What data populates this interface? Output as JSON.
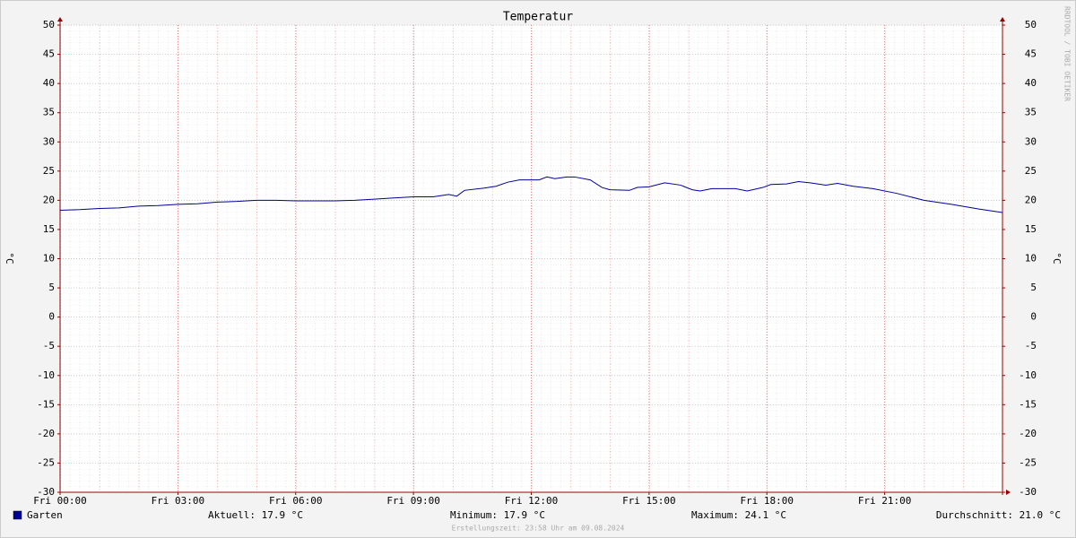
{
  "chart_data": {
    "type": "line",
    "title": "Temperatur",
    "y_label": "°C",
    "y2_label": "°C",
    "watermark": "RRDTOOL / TOBI OETIKER",
    "xlim": [
      0,
      24
    ],
    "xticks": [
      {
        "value": 0,
        "label": "Fri 00:00"
      },
      {
        "value": 3,
        "label": "Fri 03:00"
      },
      {
        "value": 6,
        "label": "Fri 06:00"
      },
      {
        "value": 9,
        "label": "Fri 09:00"
      },
      {
        "value": 12,
        "label": "Fri 12:00"
      },
      {
        "value": 15,
        "label": "Fri 15:00"
      },
      {
        "value": 18,
        "label": "Fri 18:00"
      },
      {
        "value": 21,
        "label": "Fri 21:00"
      }
    ],
    "ylim": [
      -30,
      50
    ],
    "yticks": [
      -30,
      -25,
      -20,
      -15,
      -10,
      -5,
      0,
      5,
      10,
      15,
      20,
      25,
      30,
      35,
      40,
      45,
      50
    ],
    "y2lim": [
      -30,
      50
    ],
    "y2ticks": [
      -30,
      -25,
      -20,
      -15,
      -10,
      -5,
      0,
      5,
      10,
      15,
      20,
      25,
      30,
      35,
      40,
      45,
      50
    ],
    "grid": true,
    "x": [
      0,
      0.5,
      1,
      1.5,
      2,
      2.5,
      3,
      3.5,
      4,
      4.5,
      5,
      5.5,
      6,
      6.5,
      7,
      7.5,
      8,
      8.5,
      9,
      9.5,
      9.9,
      10.1,
      10.3,
      10.8,
      11.1,
      11.4,
      11.7,
      12.2,
      12.4,
      12.6,
      12.9,
      13.1,
      13.5,
      13.8,
      14,
      14.5,
      14.7,
      15,
      15.4,
      15.8,
      16.1,
      16.3,
      16.6,
      17.2,
      17.5,
      17.9,
      18.1,
      18.5,
      18.8,
      19.1,
      19.5,
      19.8,
      20.2,
      20.7,
      21.3,
      22,
      22.7,
      23.4,
      24
    ],
    "series": [
      {
        "name": "Garten",
        "color": "#000099",
        "values": [
          18.3,
          18.4,
          18.6,
          18.7,
          19.0,
          19.1,
          19.3,
          19.4,
          19.7,
          19.8,
          20.0,
          20.0,
          19.9,
          19.9,
          19.9,
          20.0,
          20.2,
          20.4,
          20.6,
          20.6,
          21.0,
          20.7,
          21.7,
          22.1,
          22.4,
          23.1,
          23.5,
          23.5,
          24.0,
          23.7,
          24.0,
          24.0,
          23.5,
          22.2,
          21.8,
          21.7,
          22.2,
          22.3,
          23.0,
          22.6,
          21.8,
          21.6,
          22.0,
          22.0,
          21.6,
          22.2,
          22.7,
          22.8,
          23.2,
          23.0,
          22.6,
          22.9,
          22.4,
          22.0,
          21.2,
          20.0,
          19.3,
          18.5,
          17.9
        ]
      }
    ],
    "stats": [
      "Aktuell: 17.9 °C",
      "Minimum: 17.9 °C",
      "Maximum: 24.1 °C",
      "Durchschnitt: 21.0 °C"
    ],
    "footer": "Erstellungszeit: 23:58 Uhr am 09.08.2024"
  }
}
